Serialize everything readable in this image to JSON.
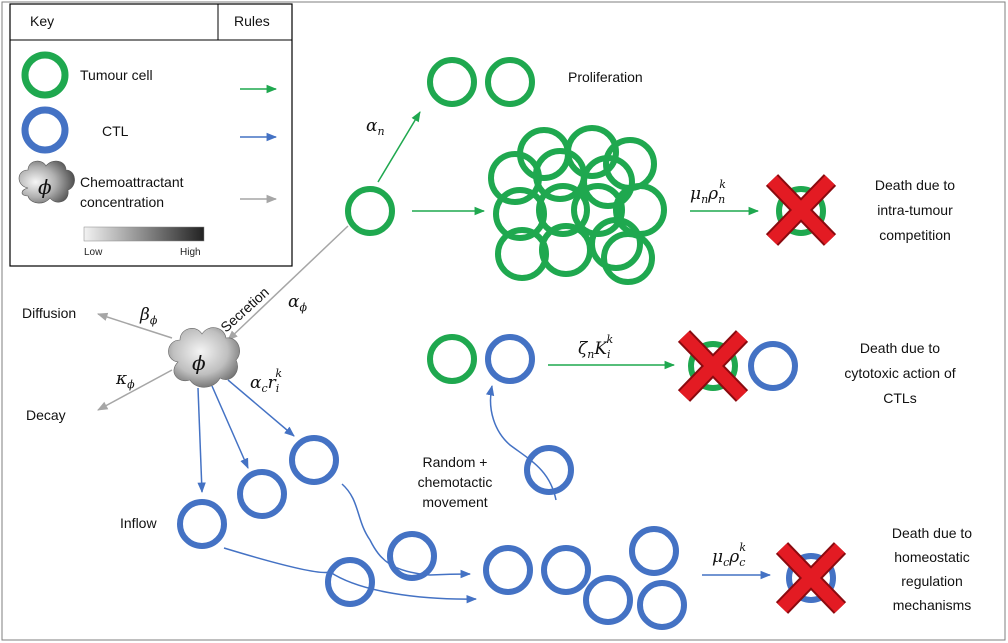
{
  "colors": {
    "tumour": "#1fa84f",
    "ctl": "#4472c4",
    "chemo": "#a6a6a6",
    "death_cross": "#e31b23"
  },
  "key": {
    "heading": "Key",
    "rules_heading": "Rules",
    "tumour_label": "Tumour cell",
    "ctl_label": "CTL",
    "chemo_label_line1": "Chemoattractant",
    "chemo_label_line2": "concentration",
    "scale_low": "Low",
    "scale_high": "High",
    "phi_symbol": "ϕ"
  },
  "labels": {
    "proliferation": "Proliferation",
    "death_competition": [
      "Death due to",
      "intra-tumour",
      "competition"
    ],
    "death_cytotoxic": [
      "Death due to",
      "cytotoxic action of",
      "CTLs"
    ],
    "death_homeostatic": [
      "Death due to",
      "homeostatic",
      "regulation",
      "mechanisms"
    ],
    "diffusion": "Diffusion",
    "decay": "Decay",
    "secretion": "Secretion",
    "inflow": "Inflow",
    "movement": [
      "Random +",
      "chemotactic",
      "movement"
    ],
    "phi_symbol": "ϕ"
  },
  "rates": {
    "alpha_n": {
      "base": "α",
      "sub": "n"
    },
    "alpha_phi": {
      "base": "α",
      "sub": "ϕ"
    },
    "beta_phi": {
      "base": "β",
      "sub": "ϕ"
    },
    "kappa_phi": {
      "base": "κ",
      "sub": "ϕ"
    },
    "mu_n": {
      "b1": "μ",
      "s1": "n",
      "b2": "ρ",
      "s2": "n",
      "sup": "k"
    },
    "zeta_n": {
      "b1": "ζ",
      "s1": "n",
      "b2": "K",
      "s2": "i",
      "sup": "k"
    },
    "alpha_c": {
      "b1": "α",
      "s1": "c",
      "b2": "r",
      "s2": "i",
      "sup": "k"
    },
    "mu_c": {
      "b1": "μ",
      "s1": "c",
      "b2": "ρ",
      "s2": "c",
      "sup": "k"
    }
  }
}
